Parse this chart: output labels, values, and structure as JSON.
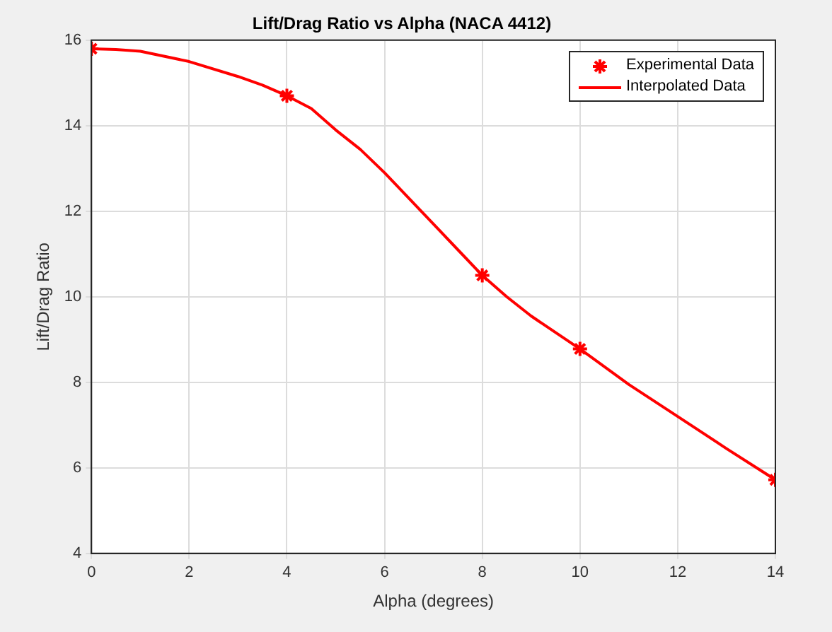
{
  "chart_data": {
    "type": "line",
    "title": "Lift/Drag Ratio vs Alpha (NACA 4412)",
    "xlabel": "Alpha (degrees)",
    "ylabel": "Lift/Drag Ratio",
    "series": [
      {
        "name": "Experimental Data",
        "type": "scatter",
        "marker": "cross",
        "color": "#ff0000",
        "x": [
          0,
          4,
          8,
          10,
          14
        ],
        "values": [
          15.8,
          14.7,
          10.5,
          8.78,
          5.72
        ]
      },
      {
        "name": "Interpolated Data",
        "marker": "none",
        "line_style": "solid",
        "color": "#ff0000",
        "x": [
          0,
          0.5,
          1,
          2,
          3,
          3.5,
          4,
          4.5,
          5,
          5.5,
          6,
          6.5,
          7,
          7.5,
          8,
          8.5,
          9,
          10,
          11,
          12,
          13,
          14
        ],
        "values": [
          15.8,
          15.78,
          15.74,
          15.5,
          15.15,
          14.95,
          14.7,
          14.4,
          13.9,
          13.45,
          12.9,
          12.3,
          11.7,
          11.1,
          10.5,
          10.0,
          9.55,
          8.78,
          7.95,
          7.2,
          6.45,
          5.72
        ]
      }
    ],
    "xlim": [
      0,
      14
    ],
    "xticks": [
      0,
      2,
      4,
      6,
      8,
      10,
      12,
      14
    ],
    "ylim": [
      4,
      16
    ],
    "yticks": [
      4,
      6,
      8,
      10,
      12,
      14,
      16
    ],
    "grid": true,
    "legend": "top right"
  }
}
